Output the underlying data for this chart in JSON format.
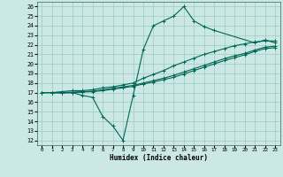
{
  "xlabel": "Humidex (Indice chaleur)",
  "bg_color": "#cce8e4",
  "grid_color": "#99ccc4",
  "line_color": "#006655",
  "xlim": [
    -0.5,
    23.5
  ],
  "ylim": [
    11.5,
    26.5
  ],
  "xticks": [
    0,
    1,
    2,
    3,
    4,
    5,
    6,
    7,
    8,
    9,
    10,
    11,
    12,
    13,
    14,
    15,
    16,
    17,
    18,
    19,
    20,
    21,
    22,
    23
  ],
  "yticks": [
    12,
    13,
    14,
    15,
    16,
    17,
    18,
    19,
    20,
    21,
    22,
    23,
    24,
    25,
    26
  ],
  "series": [
    {
      "x": [
        0,
        1,
        2,
        3,
        4,
        5,
        6,
        7,
        8,
        9,
        10,
        11,
        12,
        13,
        14,
        15,
        16,
        17,
        21,
        22,
        23
      ],
      "y": [
        17,
        17,
        17,
        17,
        16.7,
        16.5,
        14.5,
        13.5,
        12,
        16.7,
        21.5,
        24,
        24.5,
        25,
        26,
        24.5,
        23.9,
        23.5,
        22.2,
        22.5,
        22.2
      ]
    },
    {
      "x": [
        0,
        1,
        2,
        3,
        4,
        5,
        6,
        7,
        8,
        9,
        10,
        11,
        12,
        13,
        14,
        15,
        16,
        17,
        18,
        19,
        20,
        21,
        22,
        23
      ],
      "y": [
        17,
        17,
        17.1,
        17.2,
        17.2,
        17.3,
        17.5,
        17.6,
        17.8,
        18.0,
        18.5,
        18.9,
        19.3,
        19.8,
        20.2,
        20.6,
        21.0,
        21.3,
        21.6,
        21.9,
        22.1,
        22.3,
        22.4,
        22.4
      ]
    },
    {
      "x": [
        0,
        1,
        2,
        3,
        4,
        5,
        6,
        7,
        8,
        9,
        10,
        11,
        12,
        13,
        14,
        15,
        16,
        17,
        18,
        19,
        20,
        21,
        22,
        23
      ],
      "y": [
        17,
        17,
        17.0,
        17.05,
        17.1,
        17.15,
        17.3,
        17.45,
        17.6,
        17.75,
        18.0,
        18.25,
        18.5,
        18.8,
        19.15,
        19.5,
        19.85,
        20.2,
        20.55,
        20.85,
        21.1,
        21.45,
        21.75,
        21.85
      ]
    },
    {
      "x": [
        0,
        1,
        2,
        3,
        4,
        5,
        6,
        7,
        8,
        9,
        10,
        11,
        12,
        13,
        14,
        15,
        16,
        17,
        18,
        19,
        20,
        21,
        22,
        23
      ],
      "y": [
        17,
        17,
        16.95,
        17.0,
        17.05,
        17.1,
        17.2,
        17.35,
        17.5,
        17.65,
        17.9,
        18.1,
        18.35,
        18.6,
        18.95,
        19.3,
        19.65,
        20.0,
        20.35,
        20.65,
        20.95,
        21.3,
        21.6,
        21.7
      ]
    }
  ]
}
